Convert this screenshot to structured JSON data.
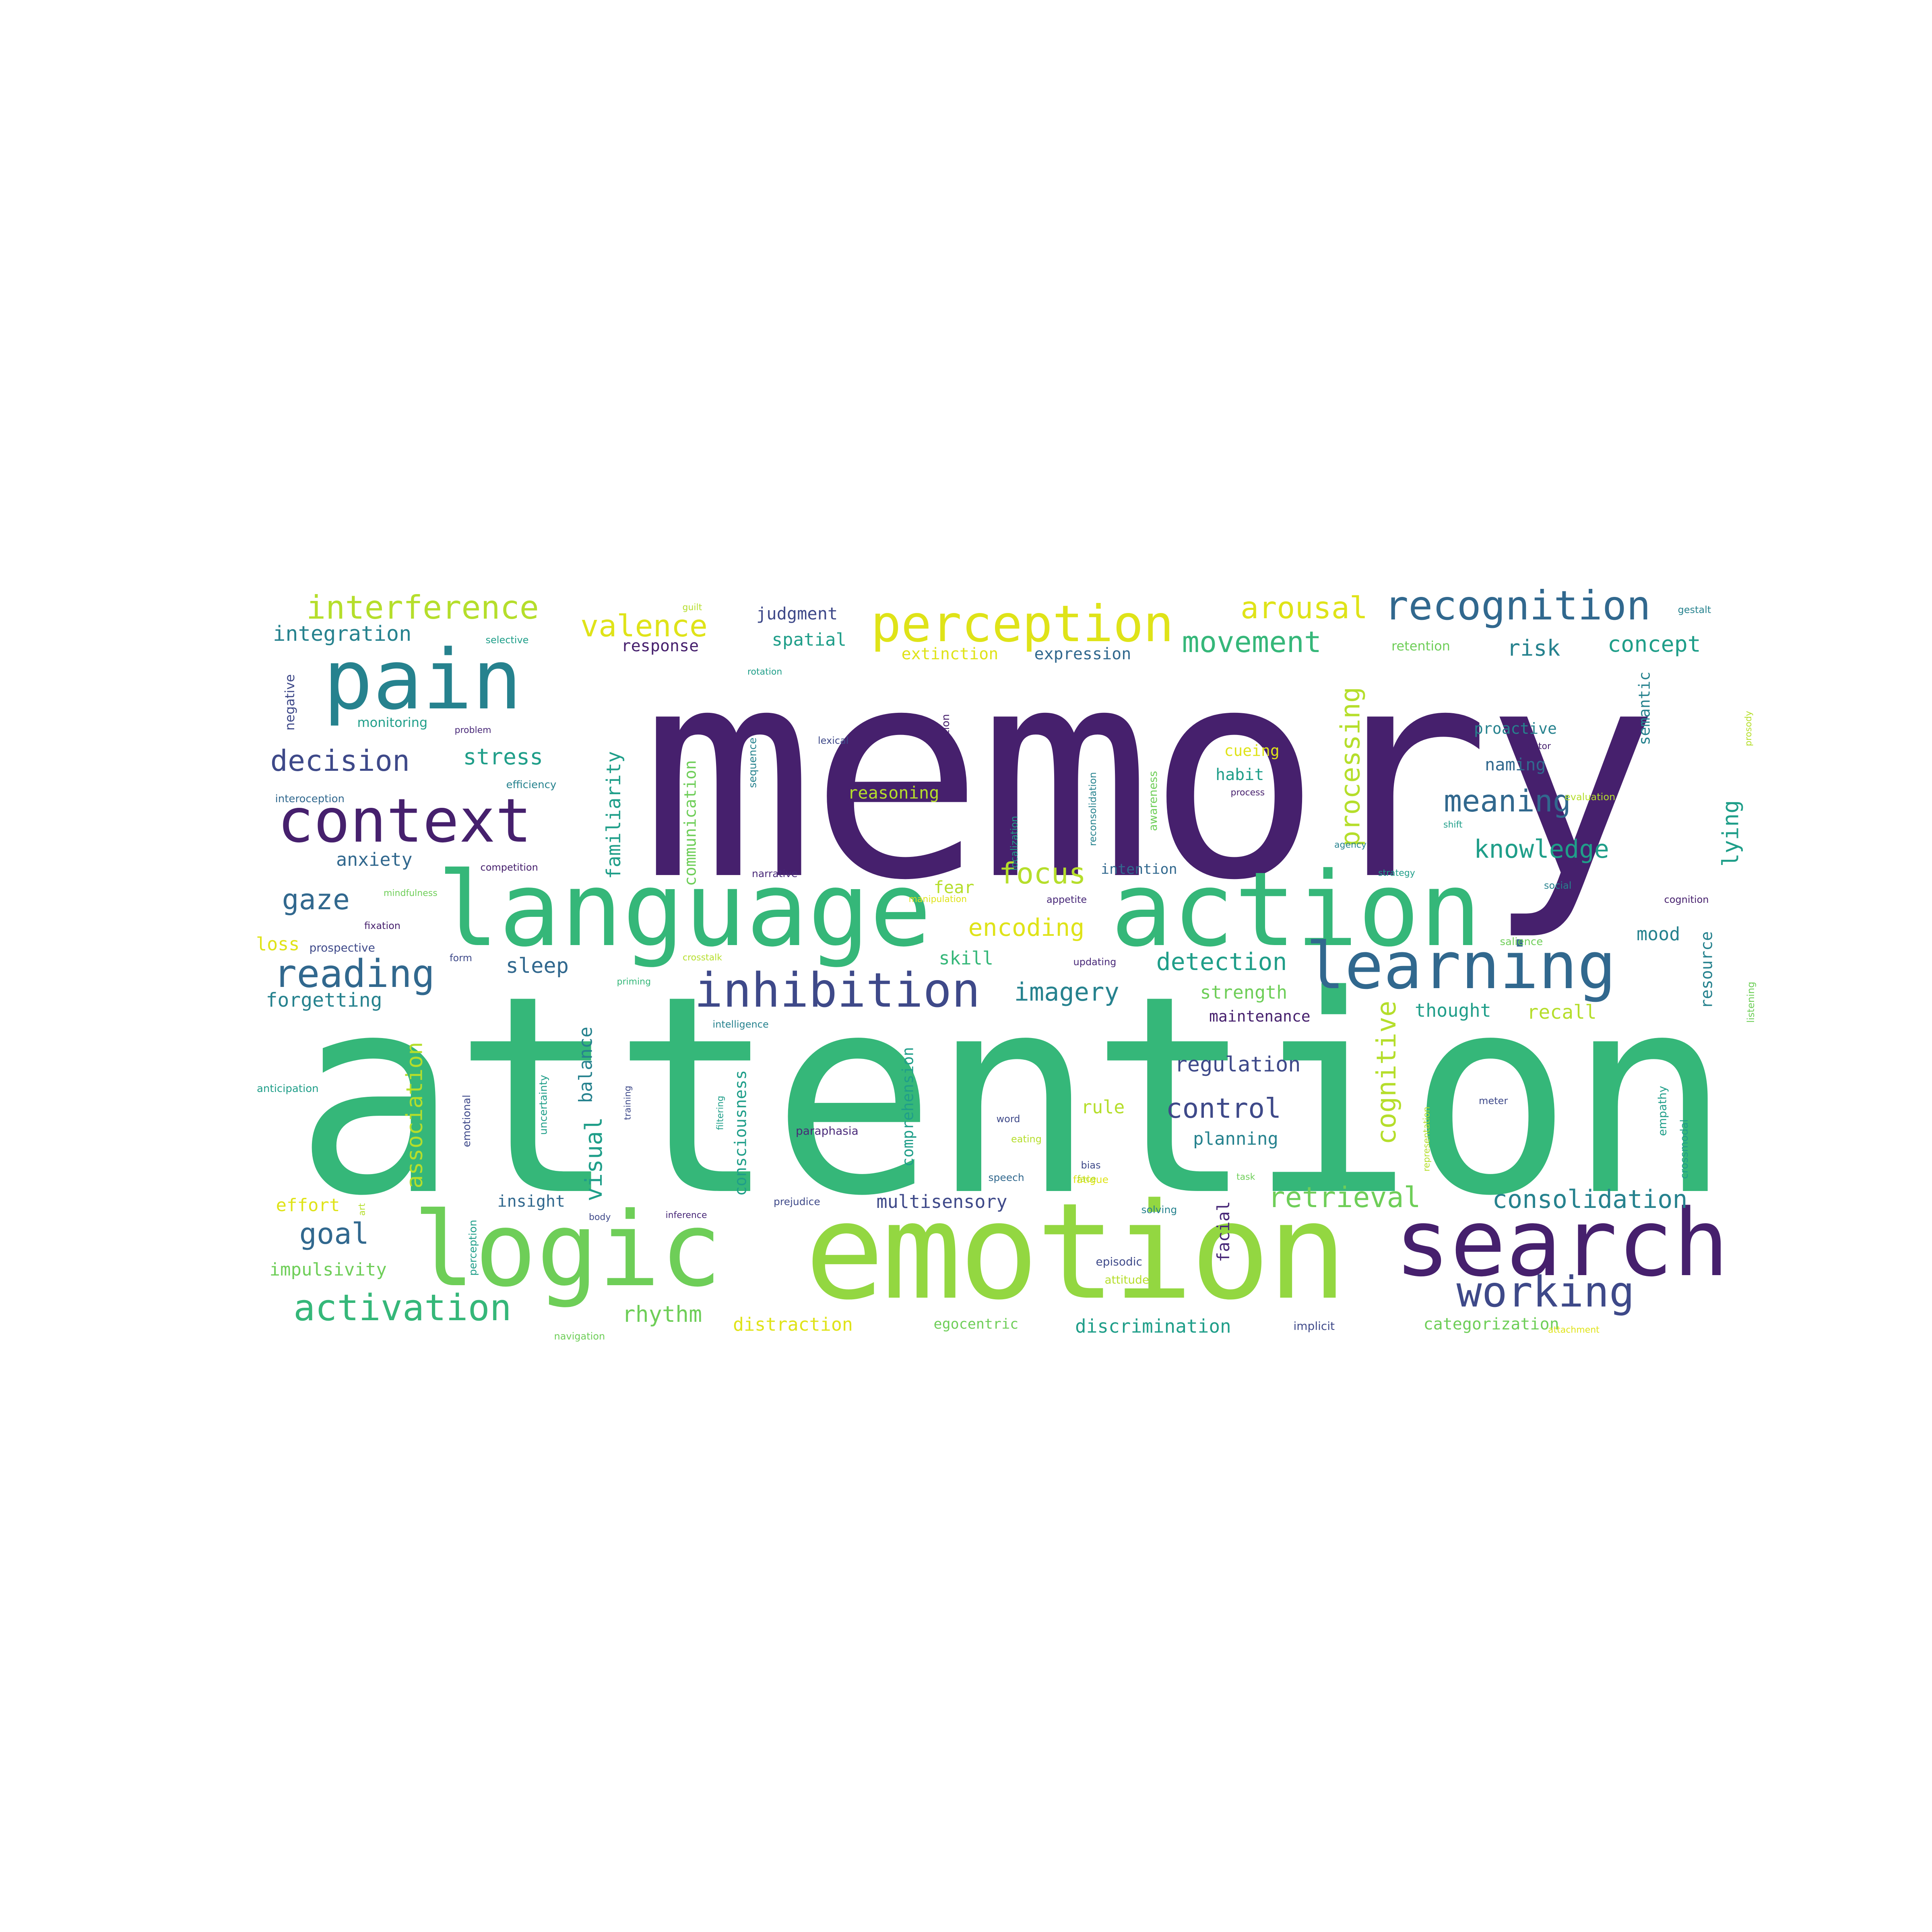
{
  "palette": {
    "dark_purple": "#46206d",
    "purple": "#482878",
    "indigo": "#3e4989",
    "blue": "#31688e",
    "teal": "#26828e",
    "green_teal": "#1f9e89",
    "green": "#35b779",
    "light_green": "#6ece58",
    "lime": "#93d741",
    "yellow_green": "#b5de2b",
    "yellow": "#dfe318"
  },
  "words": [
    "memory",
    "attention",
    "emotion",
    "language",
    "action",
    "logic",
    "search",
    "pain",
    "context",
    "learning",
    "perception",
    "inhibition",
    "recognition",
    "working",
    "activation",
    "reading",
    "interference",
    "valence",
    "arousal",
    "movement",
    "decision",
    "consolidation",
    "retrieval",
    "goal",
    "gaze",
    "focus",
    "encoding",
    "meaning",
    "knowledge",
    "imagery",
    "detection",
    "control",
    "regulation",
    "processing",
    "cognitive",
    "association",
    "familiarity",
    "communication",
    "comprehension",
    "consciousness",
    "integration",
    "judgment",
    "spatial",
    "response",
    "risk",
    "concept",
    "stress",
    "anxiety",
    "sleep",
    "forgetting",
    "impulsivity",
    "effort",
    "insight",
    "multisensory",
    "distraction",
    "discrimination",
    "categorization",
    "rhythm",
    "visual",
    "balance",
    "rule",
    "planning",
    "strength",
    "recall",
    "thought",
    "maintenance",
    "skill",
    "fear",
    "intention",
    "extinction",
    "expression",
    "semantic",
    "lying",
    "resource",
    "mood",
    "naming",
    "proactive",
    "cueing",
    "habit",
    "reasoning",
    "monitoring",
    "negative",
    "selective",
    "retention",
    "loss",
    "prospective",
    "fixation",
    "egocentric",
    "implicit",
    "facial",
    "narrative",
    "appetite",
    "updating",
    "prejudice",
    "paraphasia",
    "word",
    "speech",
    "bias",
    "fatigue",
    "solving",
    "episodic",
    "attitude",
    "navigation",
    "inference",
    "body",
    "priming",
    "intelligence",
    "anticipation",
    "competition",
    "efficiency",
    "problem",
    "lexical",
    "interoception",
    "gestalt",
    "rotation",
    "guilt",
    "sequence",
    "coordination",
    "localization",
    "reconsolidation",
    "awareness",
    "process",
    "shift",
    "motor",
    "agency",
    "strategy",
    "social",
    "cognition",
    "salience",
    "empathy",
    "crossmodal",
    "listening",
    "prosody",
    "meter",
    "task",
    "representation",
    "uncertainty",
    "training",
    "filtering",
    "crosstalk",
    "form",
    "mindfulness",
    "emotional",
    "perception",
    "evaluation",
    "attachment",
    "manipulation",
    "eating",
    "face",
    "art"
  ]
}
